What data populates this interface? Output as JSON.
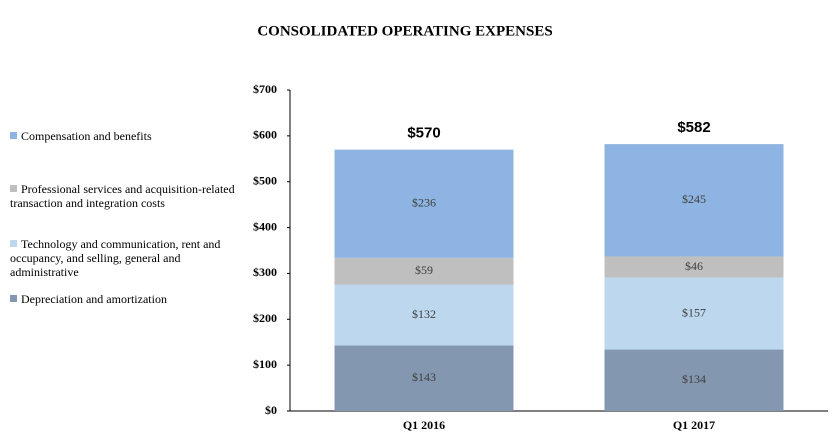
{
  "chart_data": {
    "type": "stacked-bar",
    "title": "CONSOLIDATED OPERATING EXPENSES",
    "categories": [
      "Q1 2016",
      "Q1 2017"
    ],
    "series": [
      {
        "name": "Depreciation and amortization",
        "color": "#8497b0",
        "values": [
          143,
          134
        ],
        "value_labels": [
          "$143",
          "$134"
        ]
      },
      {
        "name": "Technology and communication, rent and occupancy, and selling, general and administrative",
        "color": "#bdd7ee",
        "values": [
          132,
          157
        ],
        "value_labels": [
          "$132",
          "$157"
        ]
      },
      {
        "name": "Professional services and acquisition-related transaction and integration costs",
        "color": "#bfbfbf",
        "values": [
          59,
          46
        ],
        "value_labels": [
          "$59",
          "$46"
        ]
      },
      {
        "name": "Compensation and benefits",
        "color": "#8db4e2",
        "values": [
          236,
          245
        ],
        "value_labels": [
          "$236",
          "$245"
        ]
      }
    ],
    "totals": {
      "values": [
        570,
        582
      ],
      "value_labels": [
        "$570",
        "$582"
      ]
    },
    "ylim": [
      0,
      700
    ],
    "yticks": [
      {
        "value": 0,
        "label": "$0"
      },
      {
        "value": 100,
        "label": "$100"
      },
      {
        "value": 200,
        "label": "$200"
      },
      {
        "value": 300,
        "label": "$300"
      },
      {
        "value": 400,
        "label": "$400"
      },
      {
        "value": 500,
        "label": "$500"
      },
      {
        "value": 600,
        "label": "$600"
      },
      {
        "value": 700,
        "label": "$700"
      }
    ],
    "legend": "left"
  }
}
